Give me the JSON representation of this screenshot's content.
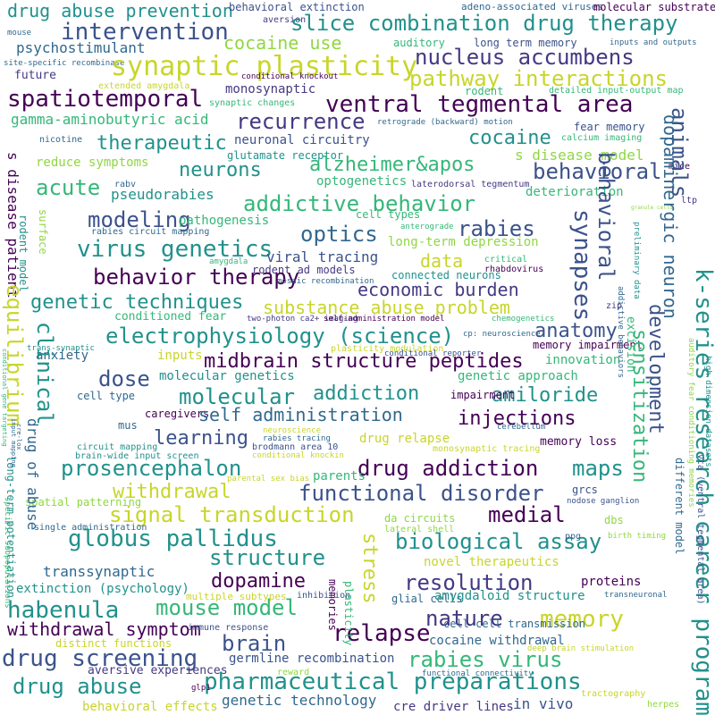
{
  "palette": {
    "purple": "#440154",
    "indigo": "#3b528b",
    "blue": "#31688e",
    "teal": "#21918c",
    "green": "#35b779",
    "lime": "#90d743",
    "yellow": "#c8d52b",
    "darkblue": "#443983"
  },
  "words": [
    "drug abuse prevention",
    "behavioral extinction",
    "adeno-associated viruses",
    "molecular substrate",
    "aversion",
    "slice combination drug therapy",
    "intervention",
    "mouse",
    "cocaine use",
    "psychostimulant",
    "auditory",
    "long term memory",
    "inputs and outputs",
    "nucleus accumbens",
    "site-specific recombinase",
    "synaptic plasticity",
    "pathway interactions",
    "future",
    "conditional knockout",
    "extended amygdala",
    "monosynaptic",
    "rodent",
    "detailed input-output map",
    "spatiotemporal",
    "ventral tegmental area",
    "synaptic changes",
    "gamma-aminobutyric acid",
    "recurrence",
    "retrograde (backward) motion",
    "fear memory",
    "neuronal circuitry",
    "cocaine",
    "nicotine",
    "therapeutic",
    "calcium imaging",
    "glutamate receptor",
    "s disease model",
    "reduce symptoms",
    "alzheimer&apos",
    "neurons",
    "behavioral",
    "optogenetics",
    "mice",
    "laterodorsal tegmentum",
    "acute",
    "rabv",
    "pseudorabies",
    "deterioration",
    "addictive behavior",
    "ltp",
    "modeling",
    "cell types",
    "pathogenesis",
    "granule cells",
    "rabies",
    "optics",
    "rabies circuit mapping",
    "long-term depression",
    "anterograde",
    "virus genetics",
    "viral tracing",
    "amygdala",
    "rodent ad models",
    "critical",
    "rhabdovirus",
    "data",
    "behavior therapy",
    "mosaic recombination",
    "connected neurons",
    "economic burden",
    "genetic techniques",
    "substance abuse problem",
    "conditioned fear",
    "two-photon ca2+ imaging",
    "self-administration model",
    "chemogenetics",
    "zip",
    "electrophysiology (science)",
    "anatomy",
    "cp: neuroscience",
    "memory impairment",
    "trans-synaptic",
    "anxiety",
    "inputs",
    "plasticity modulation",
    "innovation",
    "midbrain structure peptides",
    "conditional reporter",
    "dose",
    "molecular genetics",
    "genetic approach",
    "molecular",
    "amiloride",
    "cell type",
    "addiction",
    "impairment",
    "caregivers",
    "self administration",
    "injections",
    "mus",
    "cerebellum",
    "learning",
    "neuroscience",
    "rabies tracing",
    "drug relapse",
    "memory loss",
    "circuit mapping",
    "brodmann area 10",
    "conditional knockin",
    "brain-wide input screen",
    "monosynaptic tracing",
    "prosencephalon",
    "drug addiction",
    "maps",
    "parental sex bias",
    "parents",
    "withdrawal",
    "functional disorder",
    "grcs",
    "spatial patterning",
    "nodose ganglion",
    "signal transduction",
    "medial",
    "da circuits",
    "dbs",
    "single administration",
    "lateral shell",
    "birth timing",
    "globus pallidus",
    "biological assay",
    "ppg",
    "structure",
    "novel therapeutics",
    "transsynaptic",
    "dopamine",
    "resolution",
    "proteins",
    "extinction (psychology)",
    "multiple subtypes",
    "inhibition",
    "transneuronal",
    "habenula",
    "mouse model",
    "glial cells",
    "amygdaloid structure",
    "withdrawal symptom",
    "nature",
    "memory",
    "immune response",
    "cell-cell transmission",
    "distinct functions",
    "relapse",
    "brain",
    "cocaine withdrawal",
    "deep brain stimulation",
    "drug screening",
    "germline recombination",
    "rabies virus",
    "aversive experiences",
    "reward",
    "functional connectivity",
    "drug abuse",
    "pharmaceutical preparations",
    "glp1",
    "genetic technology",
    "tractography",
    "behavioral effects",
    "cre driver lines",
    "in vivo",
    "herpes",
    "animals",
    "dopaminergic neuron",
    "synapses",
    "k-series research career programs",
    "development",
    "sensitization",
    "behavioral",
    "excision",
    "preliminary data",
    "addictive behaviors",
    "auditory fear conditioning memories",
    "high dimension datasets",
    "vta (ventral tegmental area)",
    "different model",
    "s disease patient",
    "surface",
    "rodent model",
    "equilibrium",
    "clinical",
    "drug of abuse",
    "long-term potentiation",
    "specific subpopulations",
    "conditional gene targeting",
    "input mapping",
    "cre-lox",
    "stress",
    "memories",
    "plasticity"
  ]
}
